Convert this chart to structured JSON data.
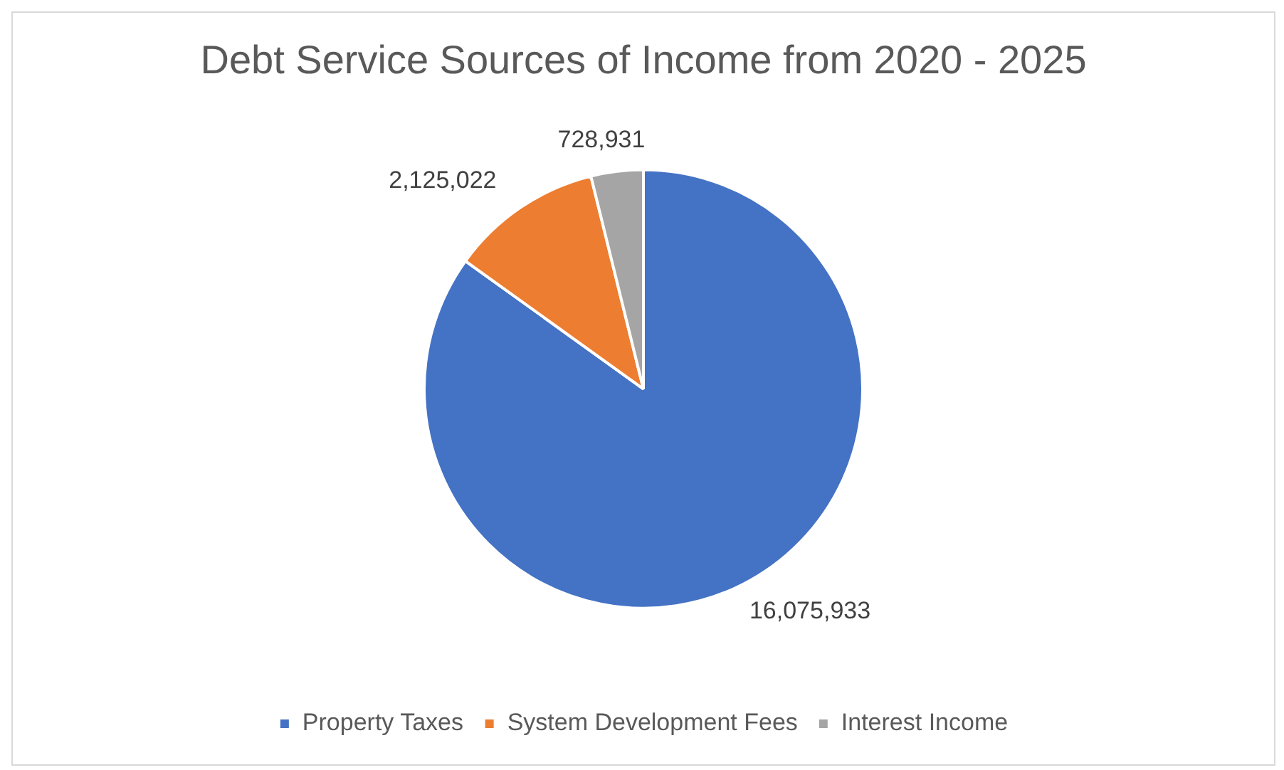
{
  "chart_data": {
    "type": "pie",
    "title": "Debt Service Sources of Income from 2020 - 2025",
    "categories": [
      "Property Taxes",
      "System Development Fees",
      "Interest Income"
    ],
    "values": [
      16075933,
      2125022,
      728931
    ],
    "colors": [
      "#4472c4",
      "#ed7d31",
      "#a5a5a5"
    ],
    "value_labels": [
      "16,075,933",
      "2,125,022",
      "728,931"
    ],
    "legend": "bottom"
  }
}
